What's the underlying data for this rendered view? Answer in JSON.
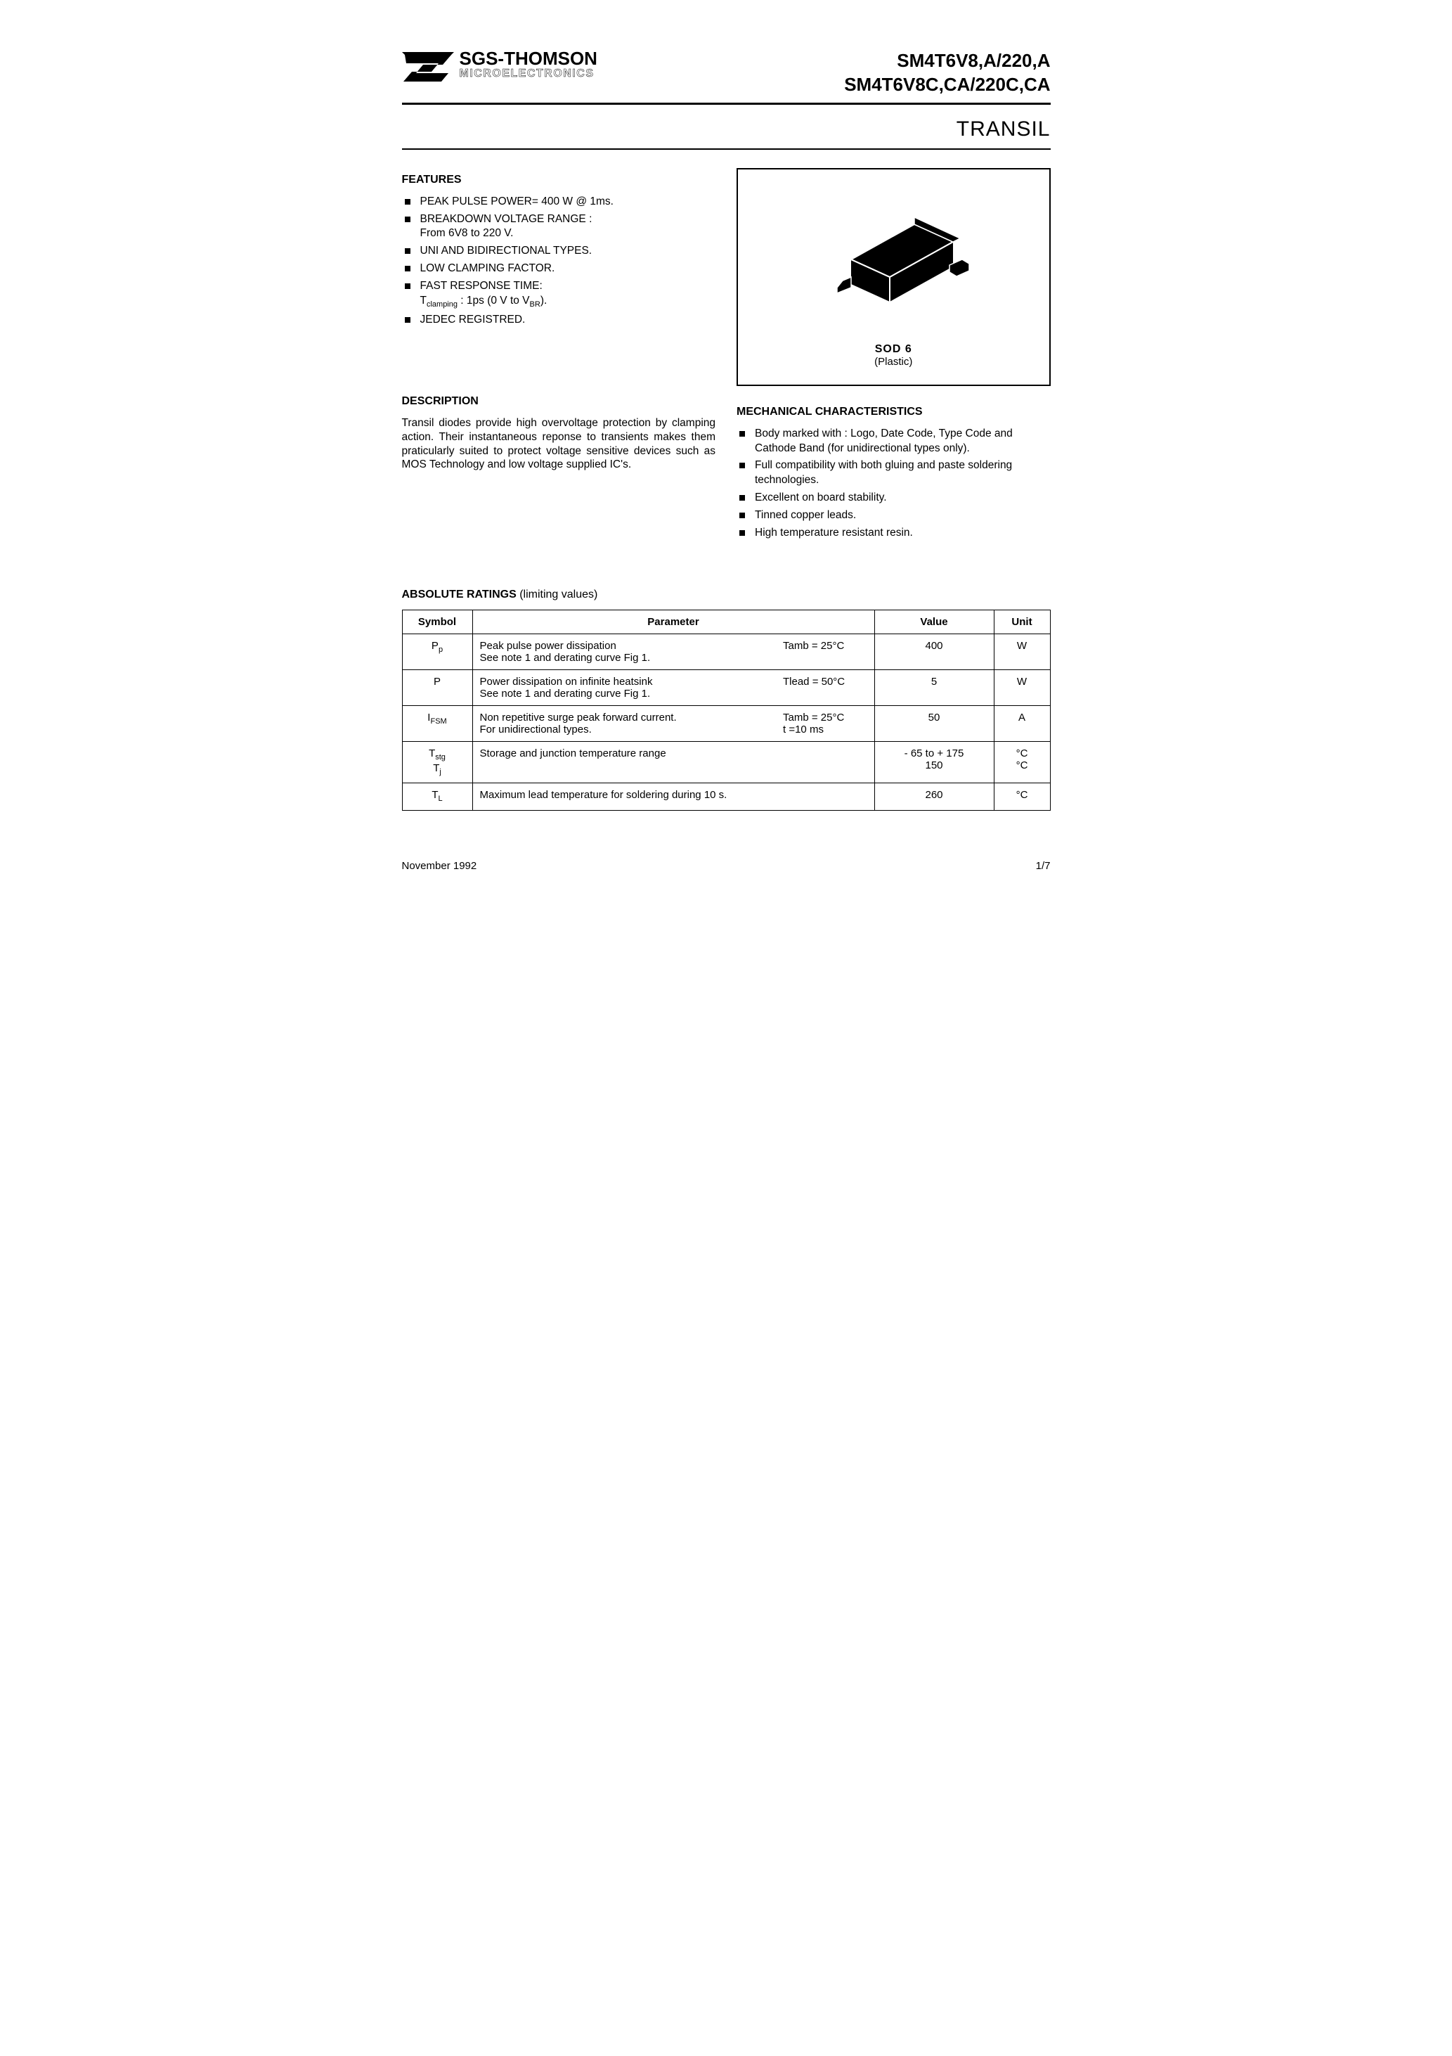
{
  "header": {
    "logo_top": "SGS-THOMSON",
    "logo_bottom": "MICROELECTRONICS",
    "part_line1": "SM4T6V8,A/220,A",
    "part_line2": "SM4T6V8C,CA/220C,CA",
    "subtitle": "TRANSIL"
  },
  "features": {
    "heading": "FEATURES",
    "items": [
      "PEAK PULSE POWER= 400 W @ 1ms.",
      "BREAKDOWN VOLTAGE RANGE :",
      "UNI AND BIDIRECTIONAL TYPES.",
      "LOW CLAMPING FACTOR.",
      "FAST RESPONSE TIME:",
      "JEDEC REGISTRED."
    ],
    "sub_1": "From 6V8 to 220 V.",
    "sub_4": "Tclamping : 1ps (0 V to VBR)."
  },
  "description": {
    "heading": "DESCRIPTION",
    "text": "Transil diodes provide high overvoltage protection by clamping action. Their instantaneous reponse to transients makes them praticularly suited to protect voltage sensitive devices such as MOS Technology and low voltage supplied IC's."
  },
  "package": {
    "name": "SOD 6",
    "sub": "(Plastic)"
  },
  "mechanical": {
    "heading": "MECHANICAL CHARACTERISTICS",
    "items": [
      "Body marked with : Logo, Date Code, Type Code and Cathode Band (for unidirectional types only).",
      "Full compatibility with both gluing and paste soldering technologies.",
      "Excellent on board stability.",
      "Tinned copper leads.",
      "High temperature resistant resin."
    ]
  },
  "ratings": {
    "title_bold": "ABSOLUTE RATINGS",
    "title_rest": " (limiting values)",
    "columns": {
      "c0": "Symbol",
      "c1": "Parameter",
      "c2": "Value",
      "c3": "Unit"
    },
    "rows": [
      {
        "symbol_html": "P<sub>p</sub>",
        "param": "Peak pulse power dissipation\nSee note 1 and derating curve Fig 1.",
        "cond": "Tamb = 25°C",
        "value": "400",
        "unit": "W"
      },
      {
        "symbol_html": "P",
        "param": "Power dissipation on infinite heatsink\nSee note 1 and derating curve Fig 1.",
        "cond": "Tlead = 50°C",
        "value": "5",
        "unit": "W"
      },
      {
        "symbol_html": "I<sub>FSM</sub>",
        "param": "Non repetitive surge peak forward current.\nFor unidirectional types.",
        "cond": "Tamb = 25°C\nt =10 ms",
        "value": "50",
        "unit": "A"
      },
      {
        "symbol_html": "T<sub>stg</sub><br>T<sub>j</sub>",
        "param": "Storage and junction temperature range",
        "cond": "",
        "value": "- 65 to + 175\n150",
        "unit": "°C\n°C"
      },
      {
        "symbol_html": "T<sub>L</sub>",
        "param": "Maximum lead temperature for soldering during 10 s.",
        "cond": "",
        "value": "260",
        "unit": "°C"
      }
    ]
  },
  "footer": {
    "date": "November 1992",
    "page": "1/7"
  },
  "colors": {
    "text": "#000000",
    "bg": "#ffffff",
    "border": "#000000"
  }
}
